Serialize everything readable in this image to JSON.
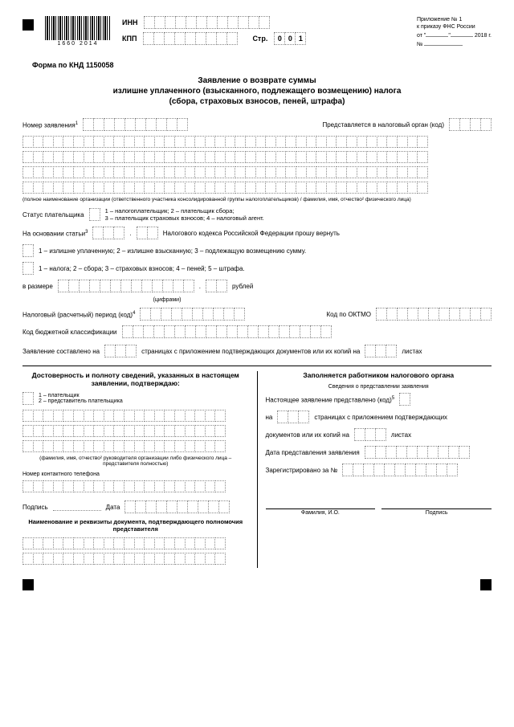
{
  "barcode_num": "1660 2014",
  "inn_label": "ИНН",
  "kpp_label": "КПП",
  "page_label": "Стр.",
  "page_value": "001",
  "annex": {
    "l1": "Приложение № 1",
    "l2": "к приказу ФНС России",
    "l3a": "от \"",
    "l3b": "\"",
    "l3c": "2018 г.",
    "l4": "№"
  },
  "form_code": "Форма по КНД 1150058",
  "title": {
    "l1": "Заявление о возврате суммы",
    "l2": "излишне уплаченного (взысканного, подлежащего возмещению) налога",
    "l3": "(сбора, страховых взносов, пеней, штрафа)"
  },
  "app_num": "Номер заявления",
  "submitted_to": "Представляется в налоговый орган (код)",
  "fullname_note": "(полное наименование организации (ответственного участника консолидированной группы налогоплательщиков) / фамилия, имя, отчество² физического лица)",
  "payer_status": "Статус плательщика",
  "payer_status_desc": {
    "l1": "1 – налогоплательщик; 2 – плательщик сбора;",
    "l2": "3 – плательщик страховых взносов; 4 – налоговый агент."
  },
  "based_on": "На основании статьи",
  "based_on_tail": "Налогового кодекса Российской Федерации прошу вернуть",
  "overpaid": "1 – излишне уплаченную; 2 – излишне взысканную; 3 – подлежащую возмещению  сумму.",
  "taxtype": "1 – налога; 2 – сбора; 3 – страховых взносов; 4 – пеней; 5 – штрафа.",
  "amount": "в размере",
  "rub": "рублей",
  "in_figures": "(цифрами)",
  "tax_period": "Налоговый (расчетный) период (код)",
  "oktmo": "Код по ОКТМО",
  "kbk": "Код бюджетной классификации",
  "composed_on": "Заявление составлено на",
  "composed_tail": "страницах с приложением подтверждающих документов или их копий на",
  "sheets": "листах",
  "left": {
    "title": "Достоверность и полноту сведений, указанных в настоящем заявлении, подтверждаю:",
    "opt1": "1 – плательщик",
    "opt2": "2 – представитель плательщика",
    "fio_note": "(фамилия, имя, отчество² руководителя организации либо физического лица – представителя полностью)",
    "phone": "Номер контактного телефона",
    "sign": "Подпись",
    "date": "Дата",
    "doc": "Наименование и реквизиты документа, подтверждающего полномочия представителя"
  },
  "right": {
    "title": "Заполняется работником налогового органа",
    "sub": "Сведения о представлении заявления",
    "l1": "Настоящее заявление представлено (код)",
    "l2a": "на",
    "l2b": "страницах с приложением подтверждающих",
    "l3a": "документов или их копий на",
    "l3b": "листах",
    "l4": "Дата представления заявления",
    "l5": "Зарегистрировано за №",
    "fio": "Фамилия, И.О.",
    "sign": "Подпись"
  },
  "inn_cells": 12,
  "kpp_cells": 9,
  "page_cells": 3,
  "name_cells_per_row": 40,
  "app_num_cells": 10,
  "code_cells": 4,
  "status_cells": 1,
  "article_cells": 3,
  "article_dec_cells": 2,
  "type1_cells": 1,
  "type2_cells": 1,
  "amount_int_cells": 13,
  "amount_dec_cells": 2,
  "period_cells": 10,
  "oktmo_cells": 11,
  "kbk_cells": 20,
  "pages_cells": 3,
  "sheets_cells": 3,
  "phone_cells": 20,
  "date_cells": 10
}
